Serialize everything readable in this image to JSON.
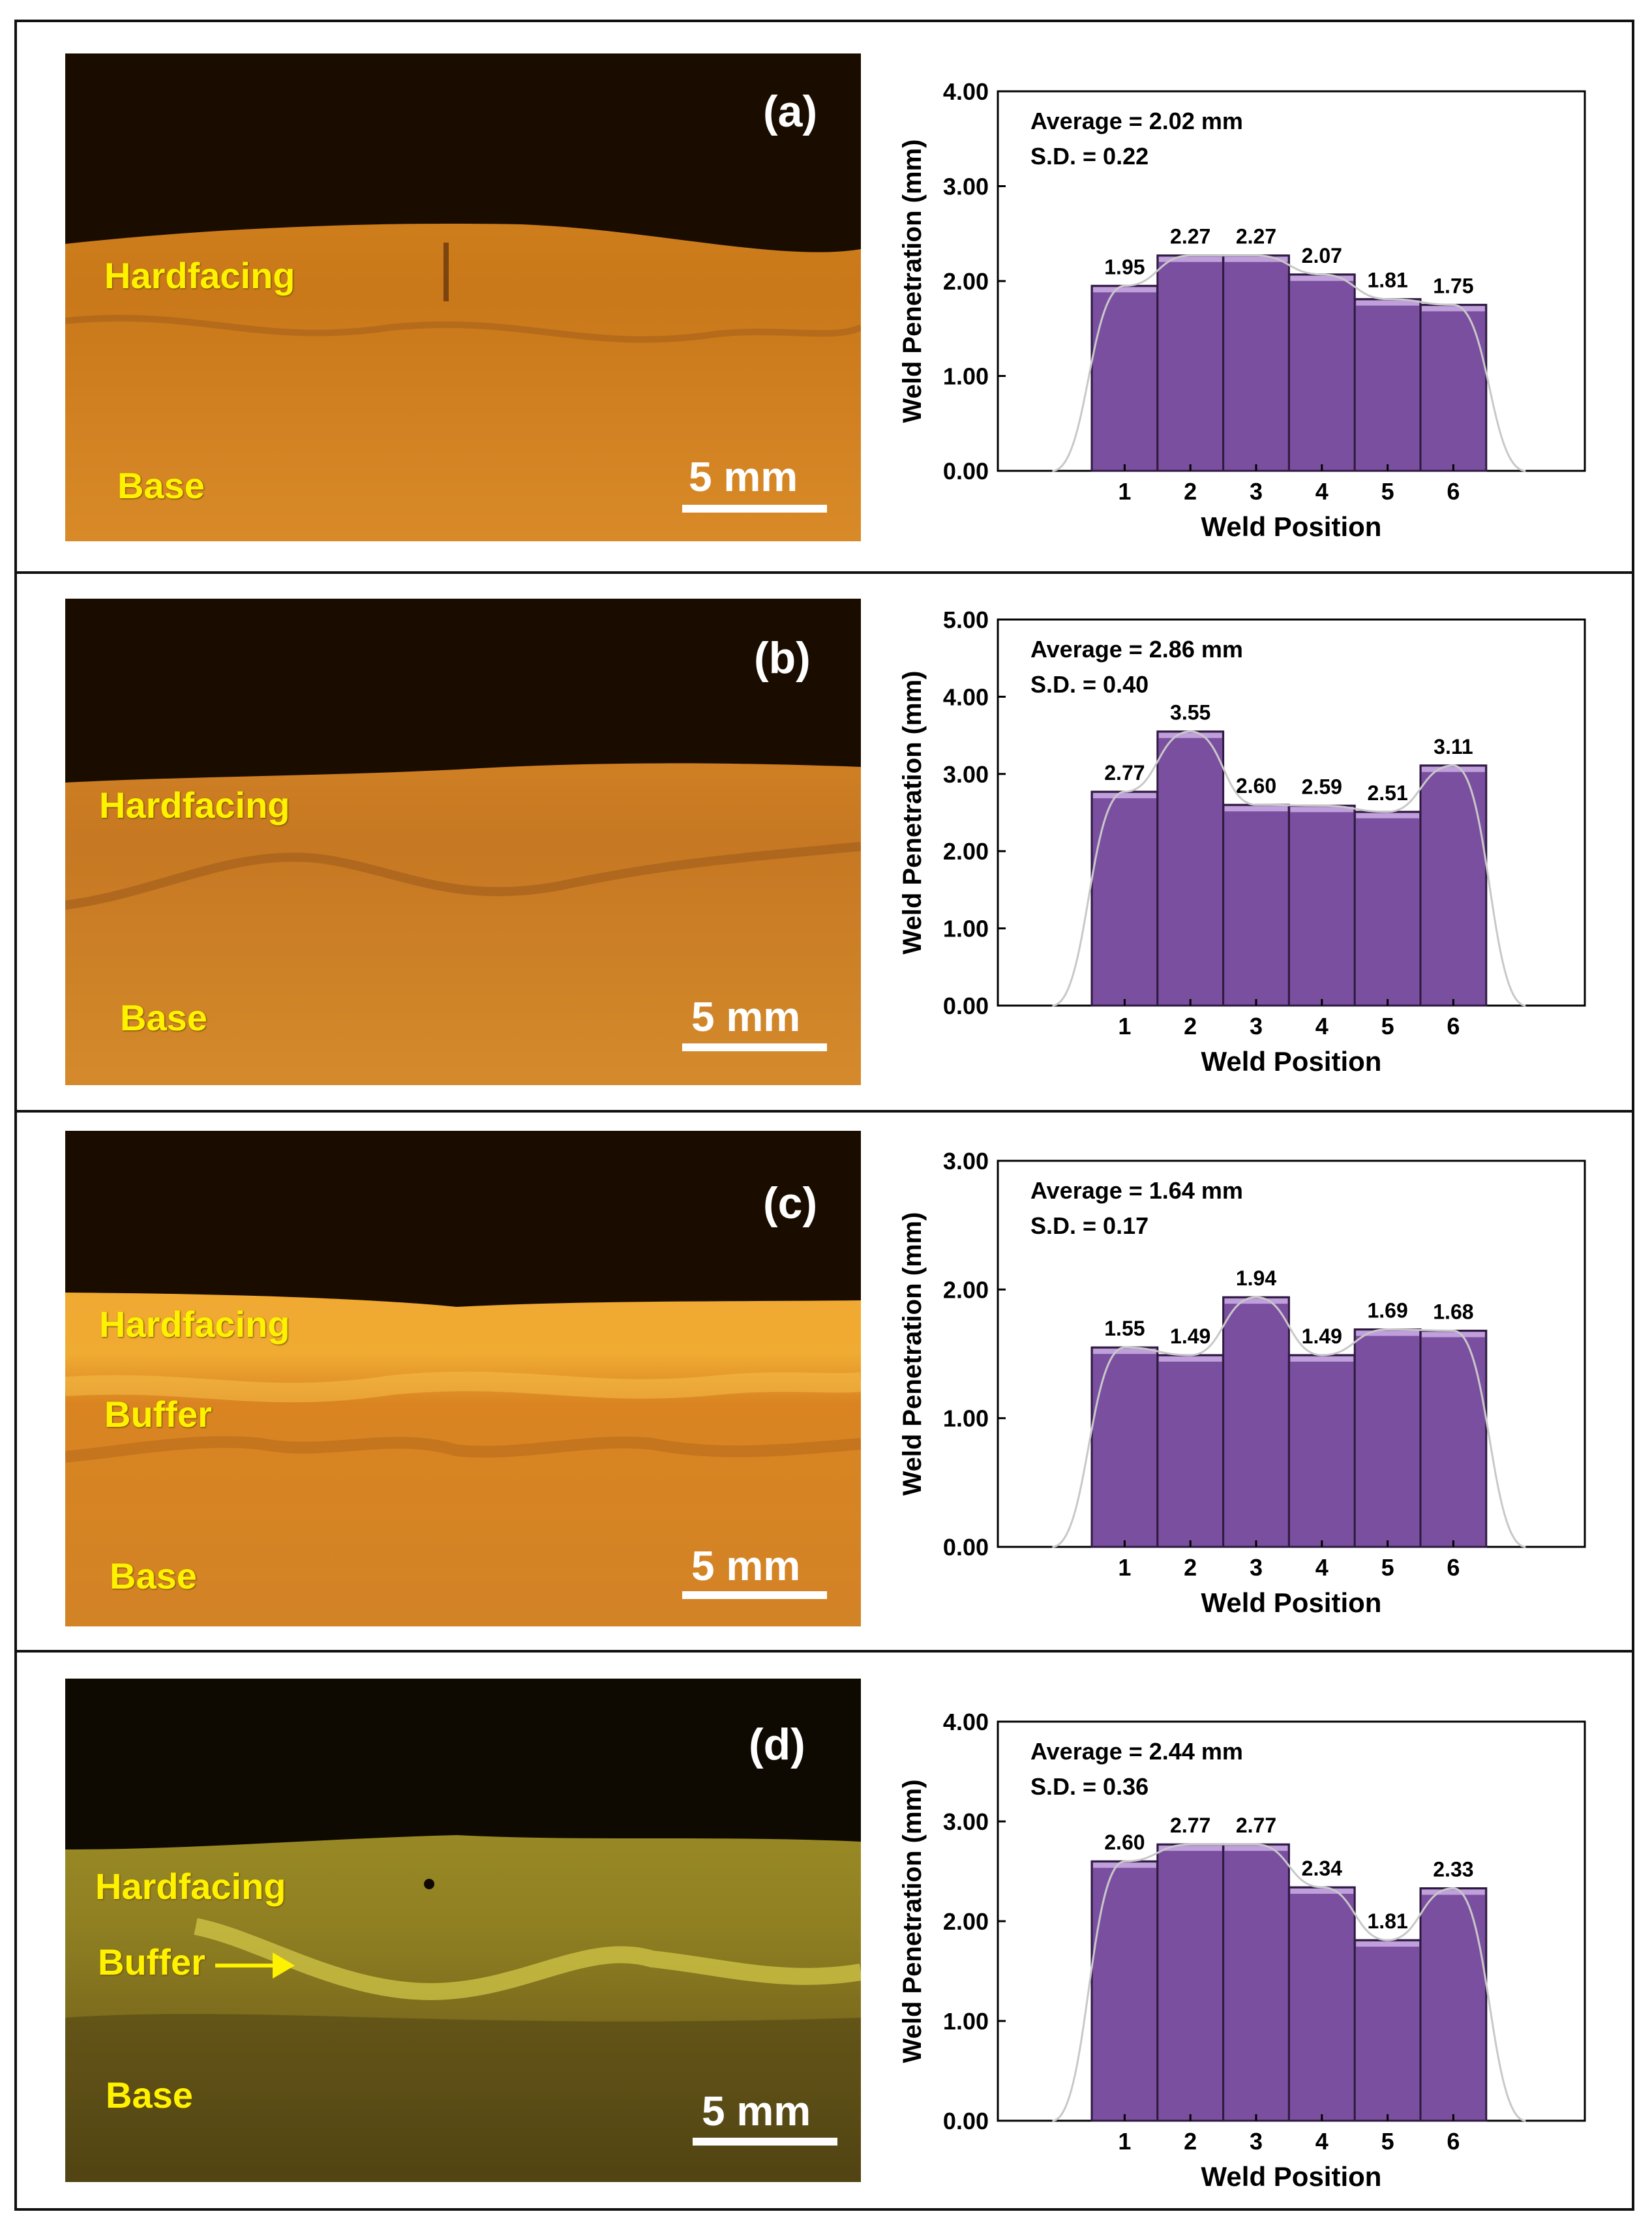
{
  "panels": [
    {
      "letter": "(a)",
      "scale_label": "5 mm",
      "layer_labels": [
        "Hardfacing",
        "Base"
      ],
      "arrow_label": ""
    },
    {
      "letter": "(b)",
      "scale_label": "5 mm",
      "layer_labels": [
        "Hardfacing",
        "Base"
      ],
      "arrow_label": ""
    },
    {
      "letter": "(c)",
      "scale_label": "5 mm",
      "layer_labels": [
        "Hardfacing",
        "Buffer",
        "Base"
      ],
      "arrow_label": ""
    },
    {
      "letter": "(d)",
      "scale_label": "5 mm",
      "layer_labels": [
        "Hardfacing",
        "Base"
      ],
      "arrow_label": "Buffer"
    }
  ],
  "colors": {
    "bar_fill": "#7b4fa0",
    "bar_top": "#c7a9e0",
    "bar_outline": "#2e1a40",
    "trend_line": "#c8c8c8",
    "label_yellow": "#fff200",
    "micrograph_dark": "#1a0d00",
    "micrograph_orange": "#d98a1f",
    "micrograph_yellow": "#b6a12a"
  },
  "chart_data": [
    {
      "type": "bar",
      "categories": [
        "1",
        "2",
        "3",
        "4",
        "5",
        "6"
      ],
      "values": [
        1.95,
        2.27,
        2.27,
        2.07,
        1.81,
        1.75
      ],
      "value_labels": [
        "1.95",
        "2.27",
        "2.27",
        "2.07",
        "1.81",
        "1.75"
      ],
      "xlabel": "Weld Position",
      "ylabel": "Weld Penetration (mm)",
      "ylim": [
        0,
        4
      ],
      "yticks": [
        "0.00",
        "1.00",
        "2.00",
        "3.00",
        "4.00"
      ],
      "annotations": [
        "Average = 2.02 mm",
        "S.D. = 0.22"
      ],
      "grid": false
    },
    {
      "type": "bar",
      "categories": [
        "1",
        "2",
        "3",
        "4",
        "5",
        "6"
      ],
      "values": [
        2.77,
        3.55,
        2.6,
        2.59,
        2.51,
        3.11
      ],
      "value_labels": [
        "2.77",
        "3.55",
        "2.60",
        "2.59",
        "2.51",
        "3.11"
      ],
      "xlabel": "Weld Position",
      "ylabel": "Weld Penetration (mm)",
      "ylim": [
        0,
        5
      ],
      "yticks": [
        "0.00",
        "1.00",
        "2.00",
        "3.00",
        "4.00",
        "5.00"
      ],
      "annotations": [
        "Average = 2.86 mm",
        "S.D. = 0.40"
      ],
      "grid": false
    },
    {
      "type": "bar",
      "categories": [
        "1",
        "2",
        "3",
        "4",
        "5",
        "6"
      ],
      "values": [
        1.55,
        1.49,
        1.94,
        1.49,
        1.69,
        1.68
      ],
      "value_labels": [
        "1.55",
        "1.49",
        "1.94",
        "1.49",
        "1.69",
        "1.68"
      ],
      "xlabel": "Weld Position",
      "ylabel": "Weld Penetration (mm)",
      "ylim": [
        0,
        3
      ],
      "yticks": [
        "0.00",
        "1.00",
        "2.00",
        "3.00"
      ],
      "annotations": [
        "Average = 1.64 mm",
        "S.D. = 0.17"
      ],
      "grid": false
    },
    {
      "type": "bar",
      "categories": [
        "1",
        "2",
        "3",
        "4",
        "5",
        "6"
      ],
      "values": [
        2.6,
        2.77,
        2.77,
        2.34,
        1.81,
        2.33
      ],
      "value_labels": [
        "2.60",
        "2.77",
        "2.77",
        "2.34",
        "1.81",
        "2.33"
      ],
      "xlabel": "Weld Position",
      "ylabel": "Weld Penetration (mm)",
      "ylim": [
        0,
        4
      ],
      "yticks": [
        "0.00",
        "1.00",
        "2.00",
        "3.00",
        "4.00"
      ],
      "annotations": [
        "Average = 2.44 mm",
        "S.D. = 0.36"
      ],
      "grid": false
    }
  ]
}
